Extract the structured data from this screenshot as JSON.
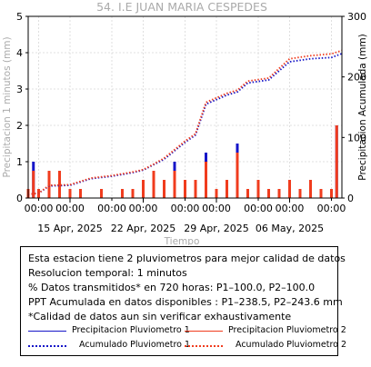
{
  "chart_data": {
    "type": "bar",
    "title": "54. I.E JUAN MARIA CESPEDES",
    "xlabel": "Tiempo",
    "ylabel_left": "Precipitacion 1 minutos (mm)",
    "ylabel_right": "Precipitacion Acumulada (mm)",
    "y_left_range": [
      0,
      5
    ],
    "y_left_ticks": [
      0,
      1,
      2,
      3,
      4,
      5
    ],
    "y_right_range": [
      0,
      300
    ],
    "y_right_ticks": [
      0,
      100,
      200,
      300
    ],
    "x_range": [
      "2025-04-11",
      "2025-05-11"
    ],
    "x_tick_labels_time": [
      "00:00",
      "00:00",
      "00:00",
      "00:00",
      "00:00",
      "00:00",
      "00:00",
      "00:00",
      "00:00"
    ],
    "x_tick_times": [
      "2025-04-12",
      "2025-04-15",
      "2025-04-19",
      "2025-04-22",
      "2025-04-26",
      "2025-04-29",
      "2025-05-03",
      "2025-05-06",
      "2025-05-10"
    ],
    "x_tick_labels_date": [
      "15 Apr, 2025",
      "22 Apr, 2025",
      "29 Apr, 2025",
      "06 May, 2025"
    ],
    "x_tick_dates": [
      "2025-04-15",
      "2025-04-22",
      "2025-04-29",
      "2025-05-06"
    ],
    "grid": true,
    "series": [
      {
        "name": "Precipitacion Pluviometro 1",
        "kind": "bar",
        "axis": "left",
        "color": "#1515c8",
        "x": [
          "2025-04-11",
          "2025-04-11 12:00",
          "2025-04-12",
          "2025-04-13",
          "2025-04-14",
          "2025-04-15",
          "2025-04-16",
          "2025-04-18",
          "2025-04-20",
          "2025-04-21",
          "2025-04-22",
          "2025-04-23",
          "2025-04-24",
          "2025-04-25",
          "2025-04-26",
          "2025-04-27",
          "2025-04-28",
          "2025-04-29",
          "2025-04-30",
          "2025-05-01",
          "2025-05-02",
          "2025-05-03",
          "2025-05-04",
          "2025-05-05",
          "2025-05-06",
          "2025-05-07",
          "2025-05-08",
          "2025-05-09",
          "2025-05-10",
          "2025-05-10 12:00"
        ],
        "values": [
          0.25,
          1.0,
          0.25,
          0.5,
          0.75,
          0.25,
          0.25,
          0.25,
          0.25,
          0.25,
          0.5,
          0.75,
          0.5,
          1.0,
          0.5,
          0.5,
          1.25,
          0.25,
          0.5,
          1.5,
          0.25,
          0.5,
          0.25,
          0.25,
          0.5,
          0.25,
          0.5,
          0.25,
          0.25,
          2.0
        ]
      },
      {
        "name": "Precipitacion Pluviometro 2",
        "kind": "bar",
        "axis": "left",
        "color": "#f03c1e",
        "x": [
          "2025-04-11",
          "2025-04-11 12:00",
          "2025-04-12",
          "2025-04-13",
          "2025-04-14",
          "2025-04-15",
          "2025-04-16",
          "2025-04-18",
          "2025-04-20",
          "2025-04-21",
          "2025-04-22",
          "2025-04-23",
          "2025-04-24",
          "2025-04-25",
          "2025-04-26",
          "2025-04-27",
          "2025-04-28",
          "2025-04-29",
          "2025-04-30",
          "2025-05-01",
          "2025-05-02",
          "2025-05-03",
          "2025-05-04",
          "2025-05-05",
          "2025-05-06",
          "2025-05-07",
          "2025-05-08",
          "2025-05-09",
          "2025-05-10",
          "2025-05-10 12:00"
        ],
        "values": [
          0.25,
          0.75,
          0.25,
          0.75,
          0.75,
          0.25,
          0.25,
          0.25,
          0.25,
          0.25,
          0.5,
          0.75,
          0.5,
          0.75,
          0.5,
          0.5,
          1.0,
          0.25,
          0.5,
          1.25,
          0.25,
          0.5,
          0.25,
          0.25,
          0.5,
          0.25,
          0.5,
          0.25,
          0.25,
          2.0
        ]
      },
      {
        "name": "Acumulado Pluviometro 1",
        "kind": "line",
        "axis": "right",
        "color": "#1515c8",
        "x": [
          "2025-04-11",
          "2025-04-12",
          "2025-04-13",
          "2025-04-15",
          "2025-04-17",
          "2025-04-19",
          "2025-04-21",
          "2025-04-22",
          "2025-04-23",
          "2025-04-24",
          "2025-04-25",
          "2025-04-26",
          "2025-04-27",
          "2025-04-28",
          "2025-04-30",
          "2025-05-01",
          "2025-05-02",
          "2025-05-04",
          "2025-05-05",
          "2025-05-06",
          "2025-05-08",
          "2025-05-10",
          "2025-05-11"
        ],
        "values": [
          6,
          8,
          20,
          21,
          32,
          36,
          42,
          46,
          55,
          64,
          78,
          92,
          104,
          155,
          170,
          175,
          190,
          195,
          210,
          225,
          230,
          232,
          238.5
        ]
      },
      {
        "name": "Acumulado Pluviometro 2",
        "kind": "line",
        "axis": "right",
        "color": "#f03c1e",
        "x": [
          "2025-04-11",
          "2025-04-12",
          "2025-04-13",
          "2025-04-15",
          "2025-04-17",
          "2025-04-19",
          "2025-04-21",
          "2025-04-22",
          "2025-04-23",
          "2025-04-24",
          "2025-04-25",
          "2025-04-26",
          "2025-04-27",
          "2025-04-28",
          "2025-04-30",
          "2025-05-01",
          "2025-05-02",
          "2025-05-04",
          "2025-05-05",
          "2025-05-06",
          "2025-05-08",
          "2025-05-10",
          "2025-05-11"
        ],
        "values": [
          6,
          8,
          21,
          22,
          33,
          37,
          43,
          47,
          56,
          66,
          80,
          94,
          106,
          158,
          173,
          178,
          193,
          198,
          214,
          230,
          235,
          238,
          243.6
        ]
      }
    ]
  },
  "info": {
    "lines": [
      "Esta estacion tiene 2 pluviometros para mejor calidad de datos",
      "Resolucion temporal: 1 minutos",
      "% Datos transmitidos* en 720 horas: P1–100.0, P2–100.0",
      "PPT Acumulada en datos disponibles : P1–238.5, P2–243.6 mm",
      "*Calidad de datos aun sin verificar exhaustivamente"
    ],
    "legend": [
      {
        "label": "Precipitacion Pluviometro 1",
        "color": "#1515c8",
        "style": "solid"
      },
      {
        "label": "Precipitacion Pluviometro 2",
        "color": "#f03c1e",
        "style": "solid"
      },
      {
        "label": "Acumulado Pluviometro 1",
        "color": "#1515c8",
        "style": "dotted"
      },
      {
        "label": "Acumulado Pluviometro 2",
        "color": "#f03c1e",
        "style": "dotted"
      }
    ]
  }
}
